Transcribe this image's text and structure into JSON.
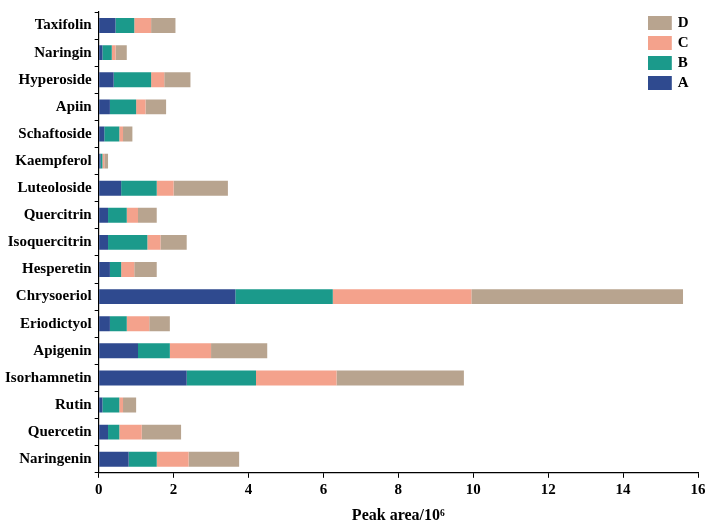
{
  "chart_data": {
    "type": "bar",
    "orientation": "horizontal",
    "stacked": true,
    "grid": false,
    "legend": "upper right",
    "x_label": "Peak area/10⁶",
    "categories": [
      "Taxifolin",
      "Naringin",
      "Hyperoside",
      "Apiin",
      "Schaftoside",
      "Kaempferol",
      "Luteoloside",
      "Quercitrin",
      "Isoquercitrin",
      "Hesperetin",
      "Chrysoeriol",
      "Eriodictyol",
      "Apigenin",
      "Isorhamnetin",
      "Rutin",
      "Quercetin",
      "Naringenin"
    ],
    "xlim": [
      0,
      16
    ],
    "xticks": [
      0,
      2,
      4,
      6,
      8,
      10,
      12,
      14,
      16
    ],
    "series": [
      {
        "name": "A",
        "color": "#2f4a8f",
        "values": [
          0.45,
          0.1,
          0.4,
          0.3,
          0.15,
          0.05,
          0.6,
          0.25,
          0.25,
          0.3,
          3.65,
          0.3,
          1.05,
          2.35,
          0.1,
          0.25,
          0.8
        ]
      },
      {
        "name": "B",
        "color": "#1b9a8b",
        "values": [
          0.5,
          0.25,
          1.0,
          0.7,
          0.4,
          0.05,
          0.95,
          0.5,
          1.05,
          0.3,
          2.6,
          0.45,
          0.85,
          1.85,
          0.45,
          0.3,
          0.75
        ]
      },
      {
        "name": "C",
        "color": "#f4a28c",
        "values": [
          0.45,
          0.1,
          0.35,
          0.25,
          0.1,
          0.05,
          0.45,
          0.3,
          0.35,
          0.35,
          3.7,
          0.6,
          1.1,
          2.15,
          0.1,
          0.6,
          0.85
        ]
      },
      {
        "name": "D",
        "color": "#b8a48f",
        "values": [
          0.65,
          0.3,
          0.7,
          0.55,
          0.25,
          0.1,
          1.45,
          0.5,
          0.7,
          0.6,
          5.65,
          0.55,
          1.5,
          3.4,
          0.35,
          1.05,
          1.35
        ]
      }
    ]
  }
}
